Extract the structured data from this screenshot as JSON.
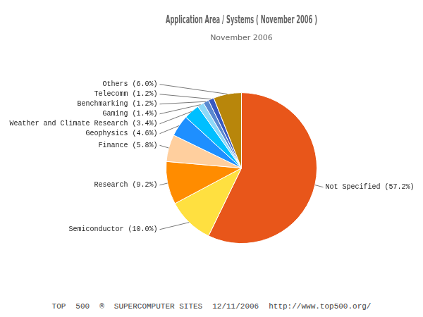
{
  "chart_data": {
    "type": "pie",
    "title": "Application Area / Systems ( November 2006 )",
    "subtitle": "November 2006",
    "categories": [
      "Not Specified (57.2%)",
      "Semiconductor (10.0%)",
      "Research (9.2%)",
      "Finance (5.8%)",
      "Geophysics (4.6%)",
      "Weather and Climate Research (3.4%)",
      "Gaming (1.4%)",
      "Benchmarking (1.2%)",
      "Telecomm (1.2%)",
      "Others (6.0%)"
    ],
    "values": [
      57.2,
      10.0,
      9.2,
      5.8,
      4.6,
      3.4,
      1.4,
      1.2,
      1.2,
      6.0
    ],
    "colors": [
      "#E8561A",
      "#FFE040",
      "#FF8C00",
      "#FFCF9E",
      "#1E8FFF",
      "#00BFFF",
      "#8DD8F8",
      "#5888D0",
      "#3858C0",
      "#B8860B"
    ],
    "annotations": [
      "TOP",
      "500",
      "®",
      "SUPERCOMPUTER SITES",
      "12/11/2006",
      "http://www.top500.org/"
    ],
    "legend": false
  }
}
